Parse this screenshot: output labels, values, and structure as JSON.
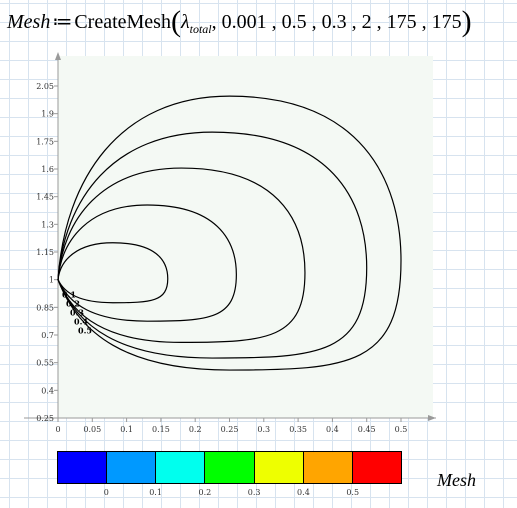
{
  "formula": {
    "variable": "Mesh",
    "assign": "≔",
    "function": "CreateMesh",
    "lambda": "λ",
    "lambda_sub": "total",
    "args": ", 0.001 , 0.5 , 0.3 , 2 , 175 , 175"
  },
  "chart_data": {
    "type": "line",
    "xlim": [
      0,
      0.5
    ],
    "ylim": [
      0.25,
      2.05
    ],
    "x_ticks": [
      "0",
      "0.05",
      "0.1",
      "0.15",
      "0.2",
      "0.25",
      "0.3",
      "0.35",
      "0.4",
      "0.45",
      "0.5"
    ],
    "y_ticks": [
      "2.05",
      "1.9",
      "1.75",
      "1.6",
      "1.45",
      "1.3",
      "1.15",
      "1",
      "0.85",
      "0.7",
      "0.55",
      "0.4",
      "0.25"
    ],
    "grid": false,
    "series": [
      {
        "label": "0.1",
        "xmax": 0.16,
        "ymax": 1.2,
        "ymin": 0.875
      },
      {
        "label": "0.2",
        "xmax": 0.26,
        "ymax": 1.405,
        "ymin": 0.775
      },
      {
        "label": "0.3",
        "xmax": 0.36,
        "ymax": 1.605,
        "ymin": 0.66
      },
      {
        "label": "0.4",
        "xmax": 0.45,
        "ymax": 1.8,
        "ymin": 0.575
      },
      {
        "label": "0.5",
        "xmax": 0.5,
        "ymax": 1.995,
        "ymin": 0.51
      }
    ]
  },
  "colorbar": {
    "colors": [
      "#0000ff",
      "#0099ff",
      "#00ffee",
      "#00ff00",
      "#eeff00",
      "#ffa500",
      "#ff0000"
    ],
    "ticks": [
      "0",
      "0.1",
      "0.2",
      "0.3",
      "0.4",
      "0.5"
    ],
    "label": "Mesh"
  }
}
